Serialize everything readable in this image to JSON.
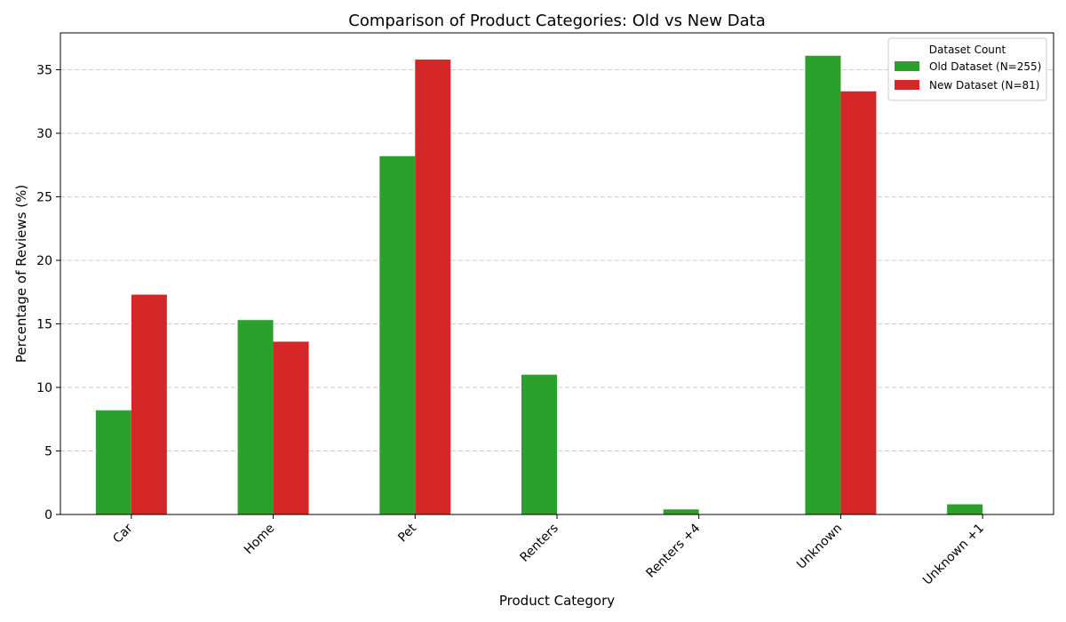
{
  "chart_data": {
    "type": "bar",
    "title": "Comparison of Product Categories: Old vs New Data",
    "xlabel": "Product Category",
    "ylabel": "Percentage of Reviews (%)",
    "categories": [
      "Car",
      "Home",
      "Pet",
      "Renters",
      "Renters +4",
      "Unknown",
      "Unknown +1"
    ],
    "series": [
      {
        "name": "Old Dataset (N=255)",
        "values": [
          8.2,
          15.3,
          28.2,
          11.0,
          0.4,
          36.1,
          0.8
        ],
        "color": "#2ca02c"
      },
      {
        "name": "New Dataset (N=81)",
        "values": [
          17.3,
          13.6,
          35.8,
          0,
          0,
          33.3,
          0
        ],
        "color": "#d62728"
      }
    ],
    "ylim": [
      0,
      37.9
    ],
    "yticks": [
      0,
      5,
      10,
      15,
      20,
      25,
      30,
      35
    ],
    "grid": "y-dashed",
    "legend": {
      "title": "Dataset Count",
      "placement": "top-right"
    }
  }
}
